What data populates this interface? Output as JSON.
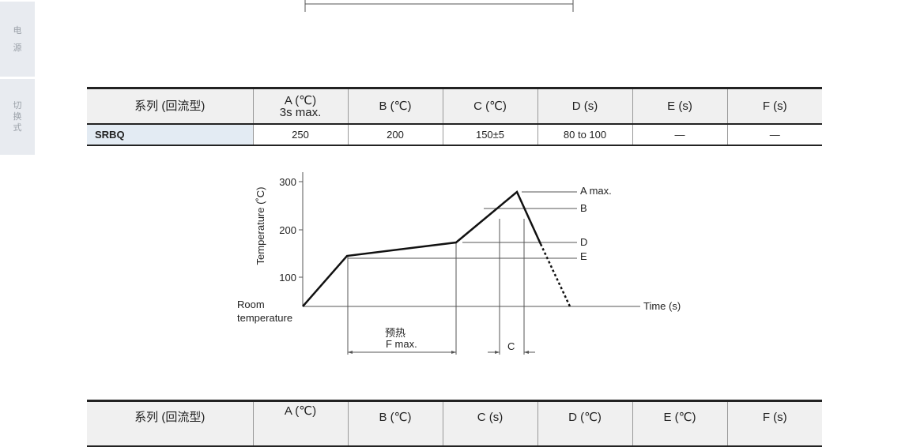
{
  "side_tabs": [
    {
      "label": [
        "电",
        "源"
      ]
    },
    {
      "label": [
        "切",
        "换",
        "式"
      ]
    }
  ],
  "table1": {
    "headers": [
      "系列 (回流型)",
      "A (℃)",
      "3s max.",
      "B (℃)",
      "C (℃)",
      "D (s)",
      "E (s)",
      "F (s)"
    ],
    "rows": [
      [
        "SRBQ",
        "250",
        "200",
        "150±5",
        "80 to 100",
        "—",
        "—"
      ]
    ]
  },
  "diagram": {
    "y_axis_label": "Temperature (˚C)",
    "y_ticks": [
      "300",
      "200",
      "100"
    ],
    "room_label": [
      "Room",
      "temperature"
    ],
    "x_axis_label": "Time (s)",
    "levels": [
      "A max.",
      "B",
      "D",
      "E"
    ],
    "preheat_label": "预热",
    "f_label": "F max.",
    "c_label": "C"
  },
  "table2": {
    "headers": [
      "系列 (回流型)",
      "A (℃)",
      "B (℃)",
      "C (s)",
      "D (℃)",
      "E (℃)",
      "F (s)"
    ]
  }
}
